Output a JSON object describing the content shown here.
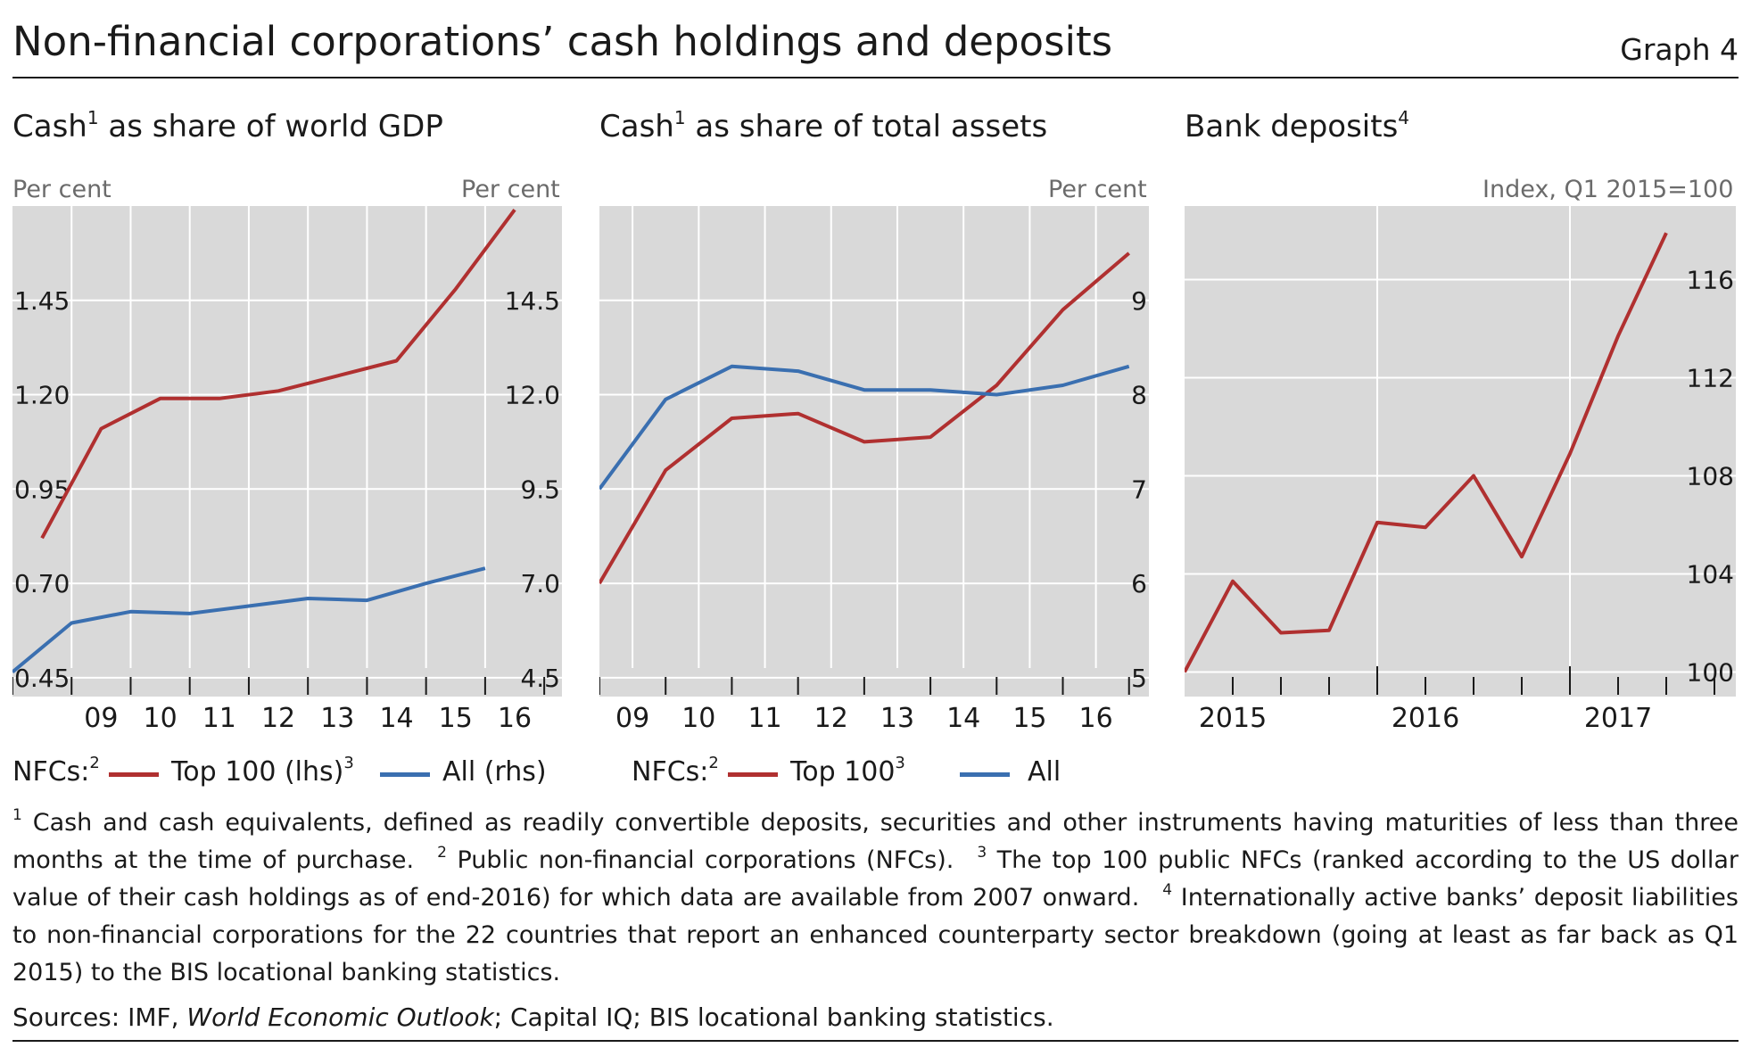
{
  "title": "Non-financial corporations’ cash holdings and deposits",
  "graph_label": "Graph 4",
  "panels": [
    {
      "title": "Cash",
      "title_sup": "1",
      "title_rest": " as share of world GDP",
      "unit_left": "Per cent",
      "unit_right": "Per cent"
    },
    {
      "title": "Cash",
      "title_sup": "1",
      "title_rest": " as share of total assets",
      "unit_right": "Per cent"
    },
    {
      "title": "Bank deposits",
      "title_sup": "4",
      "unit_right": "Index, Q1 2015=100"
    }
  ],
  "legends": [
    {
      "prefix": "NFCs:",
      "prefix_sup": "2",
      "items": [
        {
          "label": "Top 100 (lhs)",
          "sup": "3",
          "color": "#b03030"
        },
        {
          "label": "All (rhs)",
          "sup": "",
          "color": "#3a6fb0"
        }
      ]
    },
    {
      "prefix": "NFCs:",
      "prefix_sup": "2",
      "items": [
        {
          "label": "Top 100",
          "sup": "3",
          "color": "#b03030"
        },
        {
          "label": "All",
          "sup": "",
          "color": "#3a6fb0"
        }
      ]
    }
  ],
  "footnotes": [
    {
      "num": "1",
      "text": "Cash and cash equivalents, defined as readily convertible deposits, securities and other instruments having maturities of less than three months at the time of purchase."
    },
    {
      "num": "2",
      "text": "Public non-financial corporations (NFCs)."
    },
    {
      "num": "3",
      "text": "The top 100 public NFCs (ranked according to the US dollar value of their cash holdings as of end-2016) for which data are available from 2007 onward."
    },
    {
      "num": "4",
      "text": "Internationally active banks’ deposit liabilities to non-financial corporations for the 22 countries that report an enhanced counterparty sector breakdown (going at least as far back as Q1 2015) to the BIS locational banking statistics."
    }
  ],
  "sources": {
    "prefix": "Sources: IMF, ",
    "italic": "World Economic Outlook",
    "suffix": "; Capital IQ; BIS locational banking statistics."
  },
  "colors": {
    "plot_bg": "#d9d9d9",
    "grid": "#ffffff",
    "red": "#b03030",
    "blue": "#3a6fb0",
    "tick": "#1a1a1a"
  },
  "chart_data": [
    {
      "type": "line",
      "x": [
        2008.0,
        2009.0,
        2010.0,
        2011.0,
        2012.0,
        2013.0,
        2014.0,
        2015.0,
        2016.0
      ],
      "xtick_labels": [
        "09",
        "10",
        "11",
        "12",
        "13",
        "14",
        "15",
        "16"
      ],
      "xtick_pos": [
        2009.5,
        2010.5,
        2011.5,
        2012.5,
        2013.5,
        2014.5,
        2015.5,
        2016.5
      ],
      "xlim": [
        2008.0,
        2017.3
      ],
      "series": [
        {
          "name": "Top 100 (lhs)",
          "axis": "left",
          "color": "#b03030",
          "x": [
            2008.5,
            2009.5,
            2010.5,
            2011.5,
            2012.5,
            2013.5,
            2014.5,
            2015.5,
            2016.5
          ],
          "values": [
            0.82,
            1.11,
            1.19,
            1.19,
            1.21,
            1.25,
            1.29,
            1.48,
            1.69
          ]
        },
        {
          "name": "All (rhs)",
          "axis": "right",
          "color": "#3a6fb0",
          "x": [
            2008.0,
            2009.0,
            2010.0,
            2011.0,
            2012.0,
            2013.0,
            2014.0,
            2015.0,
            2016.0
          ],
          "values": [
            4.65,
            5.95,
            6.25,
            6.2,
            6.4,
            6.6,
            6.55,
            7.0,
            7.4
          ]
        }
      ],
      "ylim_left": [
        0.4,
        1.7
      ],
      "yticks_left": [
        0.45,
        0.7,
        0.95,
        1.2,
        1.45
      ],
      "ylim_right": [
        4.0,
        17.0
      ],
      "yticks_right": [
        4.5,
        7.0,
        9.5,
        12.0,
        14.5
      ],
      "left_tick_labels": [
        "0.45",
        "0.70",
        "0.95",
        "1.20",
        "1.45"
      ],
      "right_tick_labels": [
        "4.5",
        "7.0",
        "9.5",
        "12.0",
        "14.5"
      ]
    },
    {
      "type": "line",
      "xtick_labels": [
        "09",
        "10",
        "11",
        "12",
        "13",
        "14",
        "15",
        "16"
      ],
      "xtick_pos": [
        2009.0,
        2010.0,
        2011.0,
        2012.0,
        2013.0,
        2014.0,
        2015.0,
        2016.0
      ],
      "xlim": [
        2008.5,
        2016.5
      ],
      "series": [
        {
          "name": "Top 100",
          "color": "#b03030",
          "x": [
            2008.5,
            2009.5,
            2010.5,
            2011.5,
            2012.5,
            2013.5,
            2014.5,
            2015.5,
            2016.5
          ],
          "values": [
            6.0,
            7.2,
            7.75,
            7.8,
            7.5,
            7.55,
            8.1,
            8.9,
            9.5
          ]
        },
        {
          "name": "All",
          "color": "#3a6fb0",
          "x": [
            2008.5,
            2009.5,
            2010.5,
            2011.5,
            2012.5,
            2013.5,
            2014.5,
            2015.5,
            2016.5
          ],
          "values": [
            7.0,
            7.95,
            8.3,
            8.25,
            8.05,
            8.05,
            8.0,
            8.1,
            8.3
          ]
        }
      ],
      "ylim": [
        4.8,
        10.0
      ],
      "yticks": [
        5,
        6,
        7,
        8,
        9
      ],
      "right_tick_labels": [
        "5",
        "6",
        "7",
        "8",
        "9"
      ]
    },
    {
      "type": "line",
      "x_quarters": [
        "Q1 2015",
        "Q2 2015",
        "Q3 2015",
        "Q4 2015",
        "Q1 2016",
        "Q2 2016",
        "Q3 2016",
        "Q4 2016",
        "Q1 2017",
        "Q2 2017",
        "Q3 2017"
      ],
      "year_labels": [
        "2015",
        "2016",
        "2017"
      ],
      "series": [
        {
          "name": "Bank deposits",
          "color": "#b03030",
          "values": [
            100.0,
            103.7,
            101.6,
            101.7,
            106.1,
            105.9,
            108.0,
            104.7,
            108.9,
            113.7,
            117.9
          ]
        }
      ],
      "ylim": [
        99.0,
        119.0
      ],
      "yticks": [
        100,
        104,
        108,
        112,
        116
      ],
      "right_tick_labels": [
        "100",
        "104",
        "108",
        "112",
        "116"
      ]
    }
  ]
}
